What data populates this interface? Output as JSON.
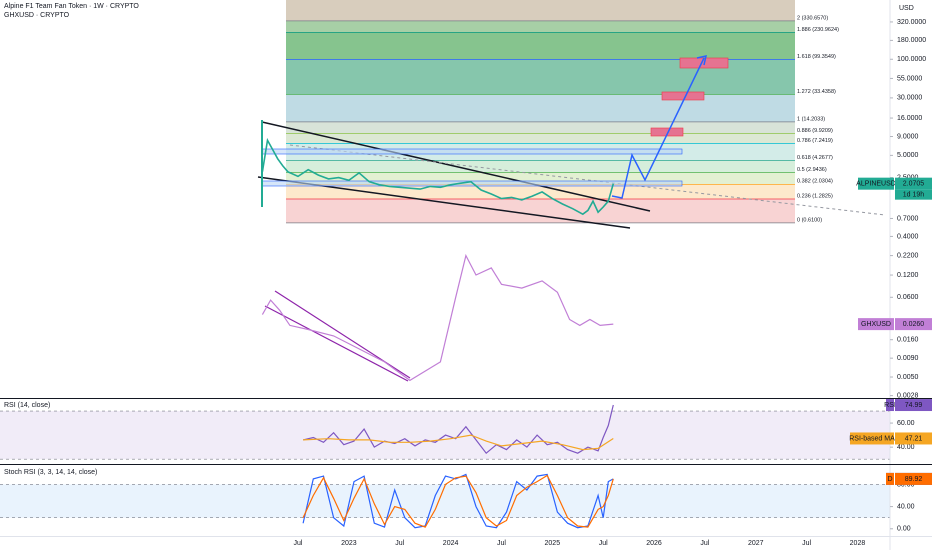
{
  "chart_data": [
    {
      "type": "line",
      "title": "Alpine F1 Team Fan Token · 1W · CRYPTO",
      "subtitle": "GHXUSD · CRYPTO",
      "y_axis_label": "USD",
      "countdown": "1d 19h",
      "log_scale": true,
      "xlim": [
        2019.57,
        2028.32
      ],
      "ylim": [
        0.0026,
        634
      ],
      "xticks": [
        {
          "value": 2022.5,
          "label": "Jul"
        },
        2023,
        {
          "value": 2023.5,
          "label": "Jul"
        },
        2024,
        {
          "value": 2024.5,
          "label": "Jul"
        },
        2025,
        {
          "value": 2025.5,
          "label": "Jul"
        },
        2026,
        {
          "value": 2026.5,
          "label": "Jul"
        },
        2027,
        {
          "value": 2027.5,
          "label": "Jul"
        },
        2028
      ],
      "yticks": [
        {
          "value": 320,
          "label": "320.0000"
        },
        {
          "value": 180,
          "label": "180.0000"
        },
        {
          "value": 100,
          "label": "100.0000"
        },
        {
          "value": 55,
          "label": "55.0000"
        },
        {
          "value": 30,
          "label": "30.0000"
        },
        {
          "value": 16,
          "label": "16.0000"
        },
        {
          "value": 9,
          "label": "9.0000"
        },
        {
          "value": 5,
          "label": "5.0000"
        },
        {
          "value": 2.5,
          "label": "2.5000"
        },
        {
          "value": 0.7,
          "label": "0.7000"
        },
        {
          "value": 0.4,
          "label": "0.4000"
        },
        {
          "value": 0.22,
          "label": "0.2200"
        },
        {
          "value": 0.12,
          "label": "0.1200"
        },
        {
          "value": 0.06,
          "label": "0.0600"
        },
        {
          "value": 0.016,
          "label": "0.0160"
        },
        {
          "value": 0.009,
          "label": "0.0090"
        },
        {
          "value": 0.005,
          "label": "0.0050"
        },
        {
          "value": 0.0028,
          "label": "0.0028"
        }
      ],
      "fib_levels": [
        {
          "label": "0 (0.6100)",
          "price": 0.61,
          "color": "#787b86",
          "fill": "#f8d3d3"
        },
        {
          "label": "0.236 (1.2825)",
          "price": 1.2825,
          "color": "#f23645",
          "fill": "#fde9cc"
        },
        {
          "label": "0.382 (2.0304)",
          "price": 2.0304,
          "color": "#ff9800",
          "fill": "#e3f0d2"
        },
        {
          "label": "0.5 (2.9436)",
          "price": 2.9436,
          "color": "#4caf50",
          "fill": "#d6eedb"
        },
        {
          "label": "0.618 (4.2677)",
          "price": 4.2677,
          "color": "#089981",
          "fill": "#d3ece8"
        },
        {
          "label": "0.786 (7.2419)",
          "price": 7.2419,
          "color": "#00bcd4",
          "fill": "#dce8d4"
        },
        {
          "label": "0.886 (9.9209)",
          "price": 9.9209,
          "color": "#8bc34a",
          "fill": "#d8e3d8"
        },
        {
          "label": "1 (14.2033)",
          "price": 14.2033,
          "color": "#787b86",
          "fill": "#bfdbe4"
        },
        {
          "label": "1.272 (33.4358)",
          "price": 33.4358,
          "color": "#4caf50",
          "fill": "#86c6ac"
        },
        {
          "label": "1.618 (99.3549)",
          "price": 99.3549,
          "color": "#2962ff",
          "fill": "#86c48e"
        },
        {
          "label": "1.886 (230.9624)",
          "price": 230.9624,
          "color": "#089981",
          "fill": "#a7cfa6"
        },
        {
          "label": "2 (330.6570)",
          "price": 330.657,
          "color": "#787b86",
          "fill": "#d8cdbd"
        }
      ],
      "series": [
        {
          "name": "ALPINEUSD",
          "color": "#22ab94",
          "x": [
            2022.15,
            2022.2,
            2022.25,
            2022.3,
            2022.35,
            2022.4,
            2022.5,
            2022.6,
            2022.7,
            2022.8,
            2022.9,
            2023.0,
            2023.1,
            2023.2,
            2023.3,
            2023.4,
            2023.5,
            2023.6,
            2023.7,
            2023.8,
            2023.9,
            2024.0,
            2024.1,
            2024.2,
            2024.3,
            2024.4,
            2024.5,
            2024.6,
            2024.7,
            2024.8,
            2024.9,
            2025.0,
            2025.1,
            2025.2,
            2025.3,
            2025.35,
            2025.4,
            2025.45,
            2025.5,
            2025.55,
            2025.6
          ],
          "values": [
            3.0,
            8.0,
            6.0,
            4.5,
            3.6,
            3.0,
            2.6,
            3.2,
            2.7,
            2.4,
            2.5,
            2.3,
            2.9,
            2.2,
            2.0,
            1.9,
            1.85,
            1.8,
            1.75,
            1.9,
            1.85,
            2.0,
            2.1,
            2.2,
            1.7,
            1.5,
            1.3,
            1.35,
            1.25,
            1.4,
            1.6,
            1.3,
            1.1,
            0.95,
            0.8,
            0.9,
            1.2,
            0.85,
            1.0,
            1.2,
            2.0705
          ]
        },
        {
          "name": "GHXUSD",
          "color": "#c17fd6",
          "x": [
            2022.15,
            2022.23,
            2022.32,
            2022.42,
            2022.6,
            2022.85,
            2023.1,
            2023.35,
            2023.6,
            2023.9,
            2024.05,
            2024.15,
            2024.25,
            2024.4,
            2024.5,
            2024.7,
            2024.9,
            2025.05,
            2025.17,
            2025.27,
            2025.37,
            2025.47,
            2025.6
          ],
          "values": [
            0.035,
            0.055,
            0.04,
            0.025,
            0.022,
            0.018,
            0.012,
            0.008,
            0.0045,
            0.008,
            0.06,
            0.22,
            0.12,
            0.15,
            0.09,
            0.08,
            0.1,
            0.07,
            0.03,
            0.025,
            0.03,
            0.025,
            0.026
          ],
          "value_labels": [
            null,
            null,
            null,
            null,
            null,
            null,
            null,
            null,
            null,
            null,
            null,
            null,
            null,
            null,
            null,
            null,
            null,
            null,
            null,
            null,
            null,
            null,
            "0.0260"
          ]
        }
      ]
    },
    {
      "type": "line",
      "title": "RSI (14, close)",
      "ylim": [
        26,
        80
      ],
      "band": [
        30,
        70
      ],
      "yticks": [
        {
          "value": 60,
          "label": "60.00"
        },
        {
          "value": 40,
          "label": "40.00"
        }
      ],
      "series": [
        {
          "name": "RSI",
          "color": "#7e57c2",
          "x": [
            2022.55,
            2022.65,
            2022.75,
            2022.85,
            2022.95,
            2023.05,
            2023.15,
            2023.25,
            2023.35,
            2023.45,
            2023.55,
            2023.65,
            2023.75,
            2023.85,
            2023.95,
            2024.05,
            2024.15,
            2024.25,
            2024.35,
            2024.45,
            2024.55,
            2024.65,
            2024.75,
            2024.85,
            2024.95,
            2025.05,
            2025.15,
            2025.25,
            2025.35,
            2025.45,
            2025.5,
            2025.55,
            2025.6
          ],
          "values": [
            46,
            48,
            44,
            52,
            42,
            45,
            55,
            40,
            45,
            43,
            47,
            41,
            46,
            44,
            50,
            47,
            57,
            46,
            35,
            42,
            38,
            46,
            40,
            50,
            42,
            44,
            38,
            35,
            40,
            37,
            48,
            58,
            74.99
          ]
        },
        {
          "name": "RSI-based MA",
          "color": "#f5a623",
          "x": [
            2022.55,
            2022.8,
            2023.0,
            2023.2,
            2023.4,
            2023.6,
            2023.8,
            2024.0,
            2024.2,
            2024.35,
            2024.5,
            2024.7,
            2024.9,
            2025.1,
            2025.3,
            2025.45,
            2025.6
          ],
          "values": [
            46,
            47,
            46,
            46,
            44,
            44,
            45,
            47,
            50,
            45,
            41,
            43,
            45,
            42,
            38,
            39,
            47.21
          ]
        }
      ]
    },
    {
      "type": "line",
      "title": "Stoch RSI (3, 3, 14, 14, close)",
      "ylim": [
        -13,
        115
      ],
      "band": [
        20,
        80
      ],
      "yticks": [
        {
          "value": 80,
          "label": "80.00"
        },
        {
          "value": 40,
          "label": "40.00"
        },
        {
          "value": 0,
          "label": "0.00"
        }
      ],
      "series": [
        {
          "name": "K",
          "color": "#2962ff",
          "x": [
            2022.55,
            2022.65,
            2022.75,
            2022.85,
            2022.95,
            2023.05,
            2023.15,
            2023.25,
            2023.35,
            2023.45,
            2023.55,
            2023.65,
            2023.75,
            2023.85,
            2023.95,
            2024.05,
            2024.15,
            2024.25,
            2024.35,
            2024.45,
            2024.55,
            2024.65,
            2024.75,
            2024.85,
            2024.95,
            2025.05,
            2025.15,
            2025.25,
            2025.35,
            2025.45,
            2025.5,
            2025.55,
            2025.6
          ],
          "values": [
            10,
            90,
            95,
            20,
            5,
            85,
            95,
            10,
            3,
            70,
            20,
            2,
            5,
            60,
            95,
            90,
            98,
            40,
            5,
            2,
            30,
            85,
            70,
            95,
            98,
            30,
            10,
            2,
            5,
            60,
            20,
            85,
            89.92
          ]
        },
        {
          "name": "D",
          "color": "#ff6d00",
          "x": [
            2022.55,
            2022.65,
            2022.75,
            2022.85,
            2022.95,
            2023.05,
            2023.15,
            2023.25,
            2023.35,
            2023.45,
            2023.55,
            2023.65,
            2023.75,
            2023.85,
            2023.95,
            2024.05,
            2024.15,
            2024.25,
            2024.35,
            2024.45,
            2024.55,
            2024.65,
            2024.75,
            2024.85,
            2024.95,
            2025.05,
            2025.15,
            2025.25,
            2025.35,
            2025.45,
            2025.5,
            2025.55,
            2025.6
          ],
          "values": [
            20,
            60,
            92,
            55,
            15,
            55,
            90,
            45,
            8,
            40,
            35,
            10,
            3,
            35,
            80,
            92,
            95,
            65,
            20,
            5,
            15,
            60,
            75,
            85,
            96,
            60,
            20,
            5,
            3,
            35,
            40,
            60,
            89.92
          ]
        }
      ]
    }
  ]
}
